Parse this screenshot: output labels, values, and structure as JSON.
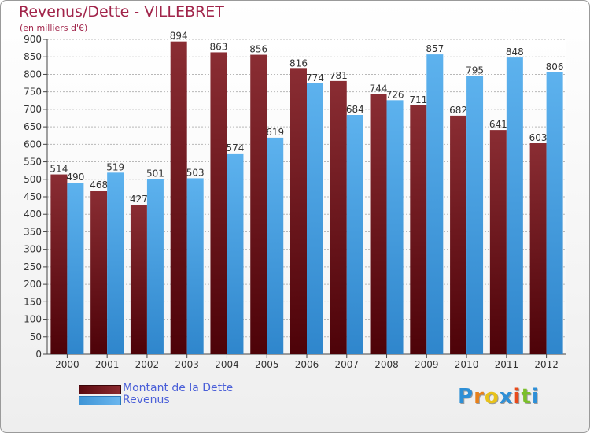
{
  "chart_data": {
    "type": "bar",
    "title": "Revenus/Dette - VILLEBRET",
    "subtitle": "(en milliers d'€)",
    "categories": [
      "2000",
      "2001",
      "2002",
      "2003",
      "2004",
      "2005",
      "2006",
      "2007",
      "2008",
      "2009",
      "2010",
      "2011",
      "2012"
    ],
    "series": [
      {
        "name": "Montant de la Dette",
        "values": [
          514,
          468,
          427,
          894,
          863,
          856,
          816,
          781,
          744,
          711,
          682,
          641,
          603
        ],
        "color": "#7a1a20"
      },
      {
        "name": "Revenus",
        "values": [
          490,
          519,
          501,
          503,
          574,
          619,
          774,
          684,
          726,
          857,
          795,
          848,
          806
        ],
        "color": "#4fa6e6"
      }
    ],
    "ylim": [
      0,
      900
    ],
    "yticks": [
      0,
      50,
      100,
      150,
      200,
      250,
      300,
      350,
      400,
      450,
      500,
      550,
      600,
      650,
      700,
      750,
      800,
      850,
      900
    ],
    "grid": true,
    "legend": "bottom-left"
  },
  "logo": {
    "letters": [
      "P",
      "r",
      "o",
      "x",
      "i",
      "t",
      "i"
    ],
    "colors": [
      "#2e8fd6",
      "#e8801a",
      "#e8c21a",
      "#2e8fd6",
      "#e84a1a",
      "#7abf2a",
      "#2e8fd6"
    ]
  }
}
